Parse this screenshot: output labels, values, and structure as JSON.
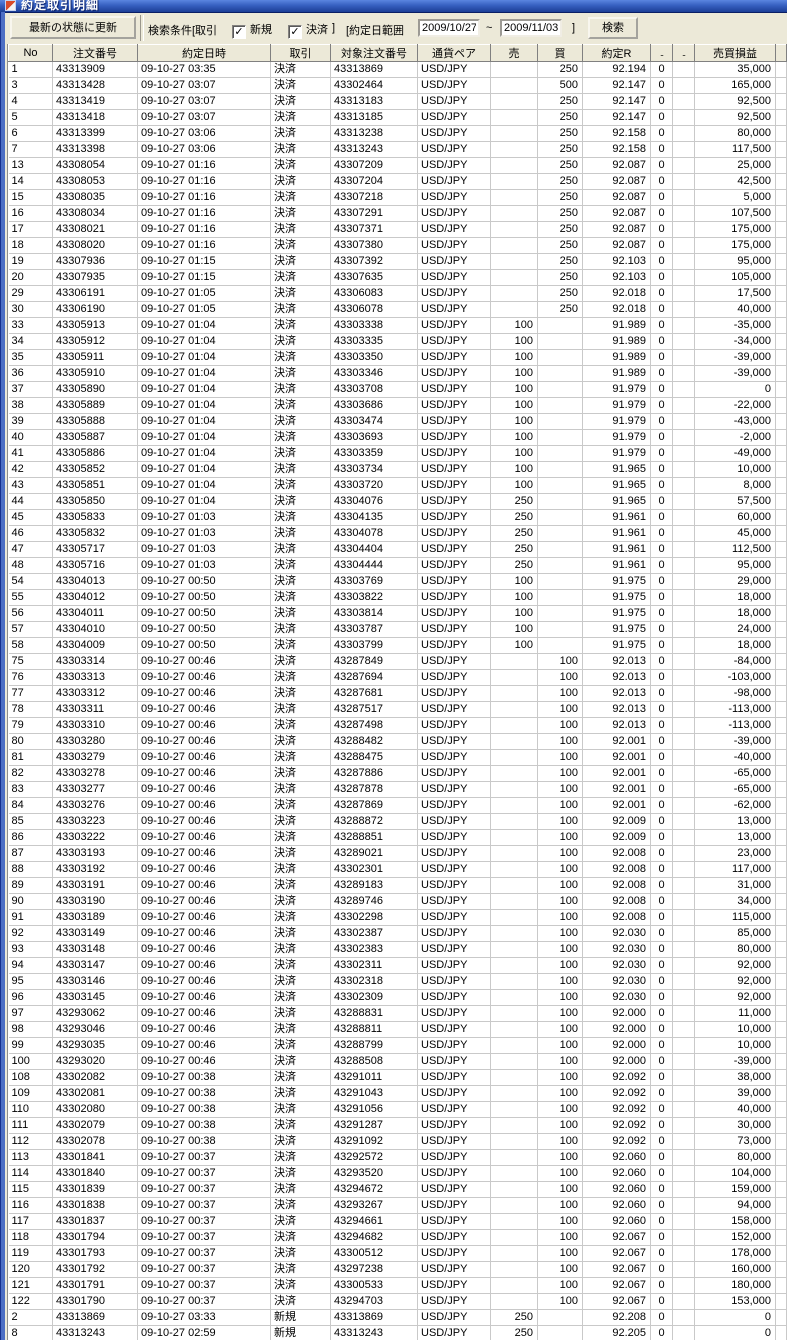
{
  "window": {
    "title": "約定取引明細"
  },
  "toolbar": {
    "refresh_button": "最新の状態に更新",
    "search_cond_label": "検索条件[取引",
    "checkbox_new": "新規",
    "checkbox_settle": "決済",
    "cond_close": "]",
    "range_label": "[約定日範囲",
    "date_from": "2009/10/27",
    "tilde": "~",
    "date_to": "2009/11/03",
    "range_close": "]",
    "search_button": "検索",
    "check_glyph": "✓"
  },
  "table": {
    "columns": [
      "No",
      "注文番号",
      "約定日時",
      "取引",
      "対象注文番号",
      "通貨ペア",
      "売",
      "買",
      "約定R",
      "..",
      "..",
      "売買損益",
      ""
    ],
    "rows": [
      [
        "1",
        "43313909",
        "09-10-27 03:35",
        "決済",
        "43313869",
        "USD/JPY",
        "",
        "250",
        "92.194",
        "0",
        "",
        "35,000"
      ],
      [
        "3",
        "43313428",
        "09-10-27 03:07",
        "決済",
        "43302464",
        "USD/JPY",
        "",
        "500",
        "92.147",
        "0",
        "",
        "165,000"
      ],
      [
        "4",
        "43313419",
        "09-10-27 03:07",
        "決済",
        "43313183",
        "USD/JPY",
        "",
        "250",
        "92.147",
        "0",
        "",
        "92,500"
      ],
      [
        "5",
        "43313418",
        "09-10-27 03:07",
        "決済",
        "43313185",
        "USD/JPY",
        "",
        "250",
        "92.147",
        "0",
        "",
        "92,500"
      ],
      [
        "6",
        "43313399",
        "09-10-27 03:06",
        "決済",
        "43313238",
        "USD/JPY",
        "",
        "250",
        "92.158",
        "0",
        "",
        "80,000"
      ],
      [
        "7",
        "43313398",
        "09-10-27 03:06",
        "決済",
        "43313243",
        "USD/JPY",
        "",
        "250",
        "92.158",
        "0",
        "",
        "117,500"
      ],
      [
        "13",
        "43308054",
        "09-10-27 01:16",
        "決済",
        "43307209",
        "USD/JPY",
        "",
        "250",
        "92.087",
        "0",
        "",
        "25,000"
      ],
      [
        "14",
        "43308053",
        "09-10-27 01:16",
        "決済",
        "43307204",
        "USD/JPY",
        "",
        "250",
        "92.087",
        "0",
        "",
        "42,500"
      ],
      [
        "15",
        "43308035",
        "09-10-27 01:16",
        "決済",
        "43307218",
        "USD/JPY",
        "",
        "250",
        "92.087",
        "0",
        "",
        "5,000"
      ],
      [
        "16",
        "43308034",
        "09-10-27 01:16",
        "決済",
        "43307291",
        "USD/JPY",
        "",
        "250",
        "92.087",
        "0",
        "",
        "107,500"
      ],
      [
        "17",
        "43308021",
        "09-10-27 01:16",
        "決済",
        "43307371",
        "USD/JPY",
        "",
        "250",
        "92.087",
        "0",
        "",
        "175,000"
      ],
      [
        "18",
        "43308020",
        "09-10-27 01:16",
        "決済",
        "43307380",
        "USD/JPY",
        "",
        "250",
        "92.087",
        "0",
        "",
        "175,000"
      ],
      [
        "19",
        "43307936",
        "09-10-27 01:15",
        "決済",
        "43307392",
        "USD/JPY",
        "",
        "250",
        "92.103",
        "0",
        "",
        "95,000"
      ],
      [
        "20",
        "43307935",
        "09-10-27 01:15",
        "決済",
        "43307635",
        "USD/JPY",
        "",
        "250",
        "92.103",
        "0",
        "",
        "105,000"
      ],
      [
        "29",
        "43306191",
        "09-10-27 01:05",
        "決済",
        "43306083",
        "USD/JPY",
        "",
        "250",
        "92.018",
        "0",
        "",
        "17,500"
      ],
      [
        "30",
        "43306190",
        "09-10-27 01:05",
        "決済",
        "43306078",
        "USD/JPY",
        "",
        "250",
        "92.018",
        "0",
        "",
        "40,000"
      ],
      [
        "33",
        "43305913",
        "09-10-27 01:04",
        "決済",
        "43303338",
        "USD/JPY",
        "100",
        "",
        "91.989",
        "0",
        "",
        "-35,000"
      ],
      [
        "34",
        "43305912",
        "09-10-27 01:04",
        "決済",
        "43303335",
        "USD/JPY",
        "100",
        "",
        "91.989",
        "0",
        "",
        "-34,000"
      ],
      [
        "35",
        "43305911",
        "09-10-27 01:04",
        "決済",
        "43303350",
        "USD/JPY",
        "100",
        "",
        "91.989",
        "0",
        "",
        "-39,000"
      ],
      [
        "36",
        "43305910",
        "09-10-27 01:04",
        "決済",
        "43303346",
        "USD/JPY",
        "100",
        "",
        "91.989",
        "0",
        "",
        "-39,000"
      ],
      [
        "37",
        "43305890",
        "09-10-27 01:04",
        "決済",
        "43303708",
        "USD/JPY",
        "100",
        "",
        "91.979",
        "0",
        "",
        "0"
      ],
      [
        "38",
        "43305889",
        "09-10-27 01:04",
        "決済",
        "43303686",
        "USD/JPY",
        "100",
        "",
        "91.979",
        "0",
        "",
        "-22,000"
      ],
      [
        "39",
        "43305888",
        "09-10-27 01:04",
        "決済",
        "43303474",
        "USD/JPY",
        "100",
        "",
        "91.979",
        "0",
        "",
        "-43,000"
      ],
      [
        "40",
        "43305887",
        "09-10-27 01:04",
        "決済",
        "43303693",
        "USD/JPY",
        "100",
        "",
        "91.979",
        "0",
        "",
        "-2,000"
      ],
      [
        "41",
        "43305886",
        "09-10-27 01:04",
        "決済",
        "43303359",
        "USD/JPY",
        "100",
        "",
        "91.979",
        "0",
        "",
        "-49,000"
      ],
      [
        "42",
        "43305852",
        "09-10-27 01:04",
        "決済",
        "43303734",
        "USD/JPY",
        "100",
        "",
        "91.965",
        "0",
        "",
        "10,000"
      ],
      [
        "43",
        "43305851",
        "09-10-27 01:04",
        "決済",
        "43303720",
        "USD/JPY",
        "100",
        "",
        "91.965",
        "0",
        "",
        "8,000"
      ],
      [
        "44",
        "43305850",
        "09-10-27 01:04",
        "決済",
        "43304076",
        "USD/JPY",
        "250",
        "",
        "91.965",
        "0",
        "",
        "57,500"
      ],
      [
        "45",
        "43305833",
        "09-10-27 01:03",
        "決済",
        "43304135",
        "USD/JPY",
        "250",
        "",
        "91.961",
        "0",
        "",
        "60,000"
      ],
      [
        "46",
        "43305832",
        "09-10-27 01:03",
        "決済",
        "43304078",
        "USD/JPY",
        "250",
        "",
        "91.961",
        "0",
        "",
        "45,000"
      ],
      [
        "47",
        "43305717",
        "09-10-27 01:03",
        "決済",
        "43304404",
        "USD/JPY",
        "250",
        "",
        "91.961",
        "0",
        "",
        "112,500"
      ],
      [
        "48",
        "43305716",
        "09-10-27 01:03",
        "決済",
        "43304444",
        "USD/JPY",
        "250",
        "",
        "91.961",
        "0",
        "",
        "95,000"
      ],
      [
        "54",
        "43304013",
        "09-10-27 00:50",
        "決済",
        "43303769",
        "USD/JPY",
        "100",
        "",
        "91.975",
        "0",
        "",
        "29,000"
      ],
      [
        "55",
        "43304012",
        "09-10-27 00:50",
        "決済",
        "43303822",
        "USD/JPY",
        "100",
        "",
        "91.975",
        "0",
        "",
        "18,000"
      ],
      [
        "56",
        "43304011",
        "09-10-27 00:50",
        "決済",
        "43303814",
        "USD/JPY",
        "100",
        "",
        "91.975",
        "0",
        "",
        "18,000"
      ],
      [
        "57",
        "43304010",
        "09-10-27 00:50",
        "決済",
        "43303787",
        "USD/JPY",
        "100",
        "",
        "91.975",
        "0",
        "",
        "24,000"
      ],
      [
        "58",
        "43304009",
        "09-10-27 00:50",
        "決済",
        "43303799",
        "USD/JPY",
        "100",
        "",
        "91.975",
        "0",
        "",
        "18,000"
      ],
      [
        "75",
        "43303314",
        "09-10-27 00:46",
        "決済",
        "43287849",
        "USD/JPY",
        "",
        "100",
        "92.013",
        "0",
        "",
        "-84,000"
      ],
      [
        "76",
        "43303313",
        "09-10-27 00:46",
        "決済",
        "43287694",
        "USD/JPY",
        "",
        "100",
        "92.013",
        "0",
        "",
        "-103,000"
      ],
      [
        "77",
        "43303312",
        "09-10-27 00:46",
        "決済",
        "43287681",
        "USD/JPY",
        "",
        "100",
        "92.013",
        "0",
        "",
        "-98,000"
      ],
      [
        "78",
        "43303311",
        "09-10-27 00:46",
        "決済",
        "43287517",
        "USD/JPY",
        "",
        "100",
        "92.013",
        "0",
        "",
        "-113,000"
      ],
      [
        "79",
        "43303310",
        "09-10-27 00:46",
        "決済",
        "43287498",
        "USD/JPY",
        "",
        "100",
        "92.013",
        "0",
        "",
        "-113,000"
      ],
      [
        "80",
        "43303280",
        "09-10-27 00:46",
        "決済",
        "43288482",
        "USD/JPY",
        "",
        "100",
        "92.001",
        "0",
        "",
        "-39,000"
      ],
      [
        "81",
        "43303279",
        "09-10-27 00:46",
        "決済",
        "43288475",
        "USD/JPY",
        "",
        "100",
        "92.001",
        "0",
        "",
        "-40,000"
      ],
      [
        "82",
        "43303278",
        "09-10-27 00:46",
        "決済",
        "43287886",
        "USD/JPY",
        "",
        "100",
        "92.001",
        "0",
        "",
        "-65,000"
      ],
      [
        "83",
        "43303277",
        "09-10-27 00:46",
        "決済",
        "43287878",
        "USD/JPY",
        "",
        "100",
        "92.001",
        "0",
        "",
        "-65,000"
      ],
      [
        "84",
        "43303276",
        "09-10-27 00:46",
        "決済",
        "43287869",
        "USD/JPY",
        "",
        "100",
        "92.001",
        "0",
        "",
        "-62,000"
      ],
      [
        "85",
        "43303223",
        "09-10-27 00:46",
        "決済",
        "43288872",
        "USD/JPY",
        "",
        "100",
        "92.009",
        "0",
        "",
        "13,000"
      ],
      [
        "86",
        "43303222",
        "09-10-27 00:46",
        "決済",
        "43288851",
        "USD/JPY",
        "",
        "100",
        "92.009",
        "0",
        "",
        "13,000"
      ],
      [
        "87",
        "43303193",
        "09-10-27 00:46",
        "決済",
        "43289021",
        "USD/JPY",
        "",
        "100",
        "92.008",
        "0",
        "",
        "23,000"
      ],
      [
        "88",
        "43303192",
        "09-10-27 00:46",
        "決済",
        "43302301",
        "USD/JPY",
        "",
        "100",
        "92.008",
        "0",
        "",
        "117,000"
      ],
      [
        "89",
        "43303191",
        "09-10-27 00:46",
        "決済",
        "43289183",
        "USD/JPY",
        "",
        "100",
        "92.008",
        "0",
        "",
        "31,000"
      ],
      [
        "90",
        "43303190",
        "09-10-27 00:46",
        "決済",
        "43289746",
        "USD/JPY",
        "",
        "100",
        "92.008",
        "0",
        "",
        "34,000"
      ],
      [
        "91",
        "43303189",
        "09-10-27 00:46",
        "決済",
        "43302298",
        "USD/JPY",
        "",
        "100",
        "92.008",
        "0",
        "",
        "115,000"
      ],
      [
        "92",
        "43303149",
        "09-10-27 00:46",
        "決済",
        "43302387",
        "USD/JPY",
        "",
        "100",
        "92.030",
        "0",
        "",
        "85,000"
      ],
      [
        "93",
        "43303148",
        "09-10-27 00:46",
        "決済",
        "43302383",
        "USD/JPY",
        "",
        "100",
        "92.030",
        "0",
        "",
        "80,000"
      ],
      [
        "94",
        "43303147",
        "09-10-27 00:46",
        "決済",
        "43302311",
        "USD/JPY",
        "",
        "100",
        "92.030",
        "0",
        "",
        "92,000"
      ],
      [
        "95",
        "43303146",
        "09-10-27 00:46",
        "決済",
        "43302318",
        "USD/JPY",
        "",
        "100",
        "92.030",
        "0",
        "",
        "92,000"
      ],
      [
        "96",
        "43303145",
        "09-10-27 00:46",
        "決済",
        "43302309",
        "USD/JPY",
        "",
        "100",
        "92.030",
        "0",
        "",
        "92,000"
      ],
      [
        "97",
        "43293062",
        "09-10-27 00:46",
        "決済",
        "43288831",
        "USD/JPY",
        "",
        "100",
        "92.000",
        "0",
        "",
        "11,000"
      ],
      [
        "98",
        "43293046",
        "09-10-27 00:46",
        "決済",
        "43288811",
        "USD/JPY",
        "",
        "100",
        "92.000",
        "0",
        "",
        "10,000"
      ],
      [
        "99",
        "43293035",
        "09-10-27 00:46",
        "決済",
        "43288799",
        "USD/JPY",
        "",
        "100",
        "92.000",
        "0",
        "",
        "10,000"
      ],
      [
        "100",
        "43293020",
        "09-10-27 00:46",
        "決済",
        "43288508",
        "USD/JPY",
        "",
        "100",
        "92.000",
        "0",
        "",
        "-39,000"
      ],
      [
        "108",
        "43302082",
        "09-10-27 00:38",
        "決済",
        "43291011",
        "USD/JPY",
        "",
        "100",
        "92.092",
        "0",
        "",
        "38,000"
      ],
      [
        "109",
        "43302081",
        "09-10-27 00:38",
        "決済",
        "43291043",
        "USD/JPY",
        "",
        "100",
        "92.092",
        "0",
        "",
        "39,000"
      ],
      [
        "110",
        "43302080",
        "09-10-27 00:38",
        "決済",
        "43291056",
        "USD/JPY",
        "",
        "100",
        "92.092",
        "0",
        "",
        "40,000"
      ],
      [
        "111",
        "43302079",
        "09-10-27 00:38",
        "決済",
        "43291287",
        "USD/JPY",
        "",
        "100",
        "92.092",
        "0",
        "",
        "30,000"
      ],
      [
        "112",
        "43302078",
        "09-10-27 00:38",
        "決済",
        "43291092",
        "USD/JPY",
        "",
        "100",
        "92.092",
        "0",
        "",
        "73,000"
      ],
      [
        "113",
        "43301841",
        "09-10-27 00:37",
        "決済",
        "43292572",
        "USD/JPY",
        "",
        "100",
        "92.060",
        "0",
        "",
        "80,000"
      ],
      [
        "114",
        "43301840",
        "09-10-27 00:37",
        "決済",
        "43293520",
        "USD/JPY",
        "",
        "100",
        "92.060",
        "0",
        "",
        "104,000"
      ],
      [
        "115",
        "43301839",
        "09-10-27 00:37",
        "決済",
        "43294672",
        "USD/JPY",
        "",
        "100",
        "92.060",
        "0",
        "",
        "159,000"
      ],
      [
        "116",
        "43301838",
        "09-10-27 00:37",
        "決済",
        "43293267",
        "USD/JPY",
        "",
        "100",
        "92.060",
        "0",
        "",
        "94,000"
      ],
      [
        "117",
        "43301837",
        "09-10-27 00:37",
        "決済",
        "43294661",
        "USD/JPY",
        "",
        "100",
        "92.060",
        "0",
        "",
        "158,000"
      ],
      [
        "118",
        "43301794",
        "09-10-27 00:37",
        "決済",
        "43294682",
        "USD/JPY",
        "",
        "100",
        "92.067",
        "0",
        "",
        "152,000"
      ],
      [
        "119",
        "43301793",
        "09-10-27 00:37",
        "決済",
        "43300512",
        "USD/JPY",
        "",
        "100",
        "92.067",
        "0",
        "",
        "178,000"
      ],
      [
        "120",
        "43301792",
        "09-10-27 00:37",
        "決済",
        "43297238",
        "USD/JPY",
        "",
        "100",
        "92.067",
        "0",
        "",
        "160,000"
      ],
      [
        "121",
        "43301791",
        "09-10-27 00:37",
        "決済",
        "43300533",
        "USD/JPY",
        "",
        "100",
        "92.067",
        "0",
        "",
        "180,000"
      ],
      [
        "122",
        "43301790",
        "09-10-27 00:37",
        "決済",
        "43294703",
        "USD/JPY",
        "",
        "100",
        "92.067",
        "0",
        "",
        "153,000"
      ],
      [
        "2",
        "43313869",
        "09-10-27 03:33",
        "新規",
        "43313869",
        "USD/JPY",
        "250",
        "",
        "92.208",
        "0",
        "",
        "0"
      ],
      [
        "8",
        "43313243",
        "09-10-27 02:59",
        "新規",
        "43313243",
        "USD/JPY",
        "250",
        "",
        "92.205",
        "0",
        "",
        "0"
      ]
    ]
  }
}
